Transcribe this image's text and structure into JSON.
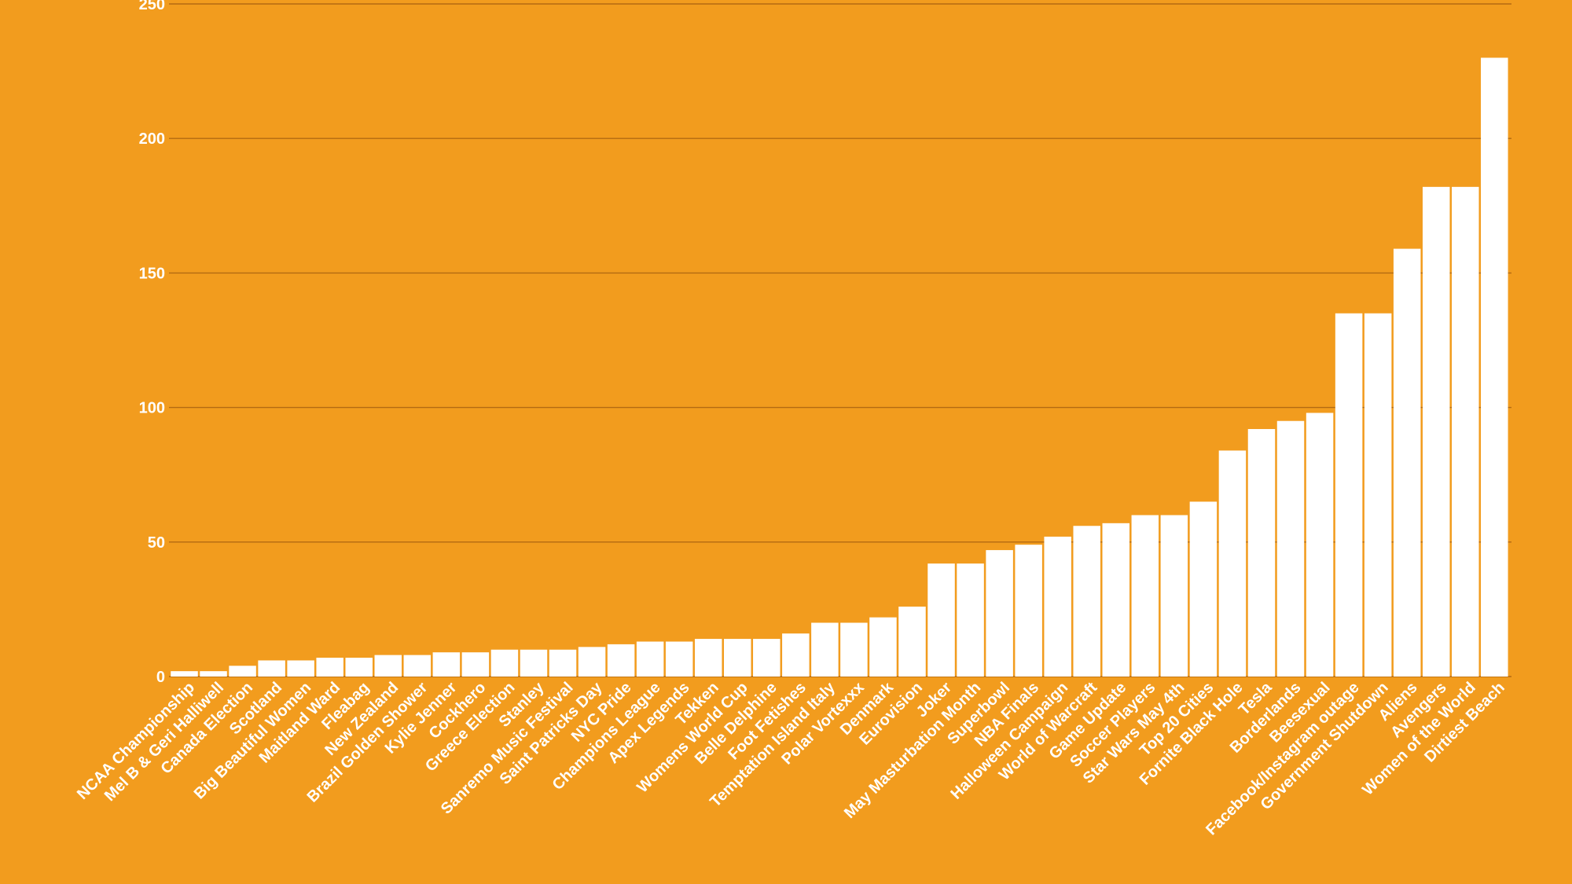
{
  "chart_data": {
    "type": "bar",
    "title": "",
    "xlabel": "",
    "ylabel": "",
    "ylim": [
      0,
      250
    ],
    "yticks": [
      0,
      50,
      100,
      150,
      200,
      250
    ],
    "grid": true,
    "categories": [
      "NCAA Championship",
      "Mel B & Geri Halliwell",
      "Canada Election",
      "Scotland",
      "Big Beautiful Women",
      "Maitland Ward",
      "Fleabag",
      "New Zealand",
      "Brazil Golden Shower",
      "Kylie Jenner",
      "Cockhero",
      "Greece Election",
      "Stanley",
      "Sanremo Music Festival",
      "Saint Patricks Day",
      "NYC Pride",
      "Champions League",
      "Apex Legends",
      "Tekken",
      "Womens World Cup",
      "Belle Delphine",
      "Foot Fetishes",
      "Temptation Island Italy",
      "Polar Vortexxx",
      "Denmark",
      "Eurovision",
      "Joker",
      "May Masturbation Month",
      "Superbowl",
      "NBA Finals",
      "Halloween Campaign",
      "World of Warcraft",
      "Game Update",
      "Soccer Players",
      "Star Wars May 4th",
      "Top 20 Cities",
      "Fornite Black Hole",
      "Tesla",
      "Borderlands",
      "Beesexual",
      "Facebook/Instagram outage",
      "Government Shutdown",
      "Aliens",
      "Avengers",
      "Women of the World",
      "Dirtiest Beach"
    ],
    "values": [
      2,
      2,
      4,
      6,
      6,
      7,
      7,
      8,
      8,
      9,
      9,
      10,
      10,
      10,
      11,
      12,
      13,
      13,
      14,
      14,
      14,
      16,
      20,
      20,
      22,
      26,
      42,
      42,
      47,
      49,
      52,
      56,
      57,
      60,
      60,
      65,
      84,
      92,
      95,
      98,
      135,
      135,
      159,
      182,
      182,
      230
    ],
    "colors": {
      "background": "#F29C1E",
      "bar": "#FFFFFF",
      "grid": "#B36A12",
      "text": "#FFFFFF"
    }
  }
}
